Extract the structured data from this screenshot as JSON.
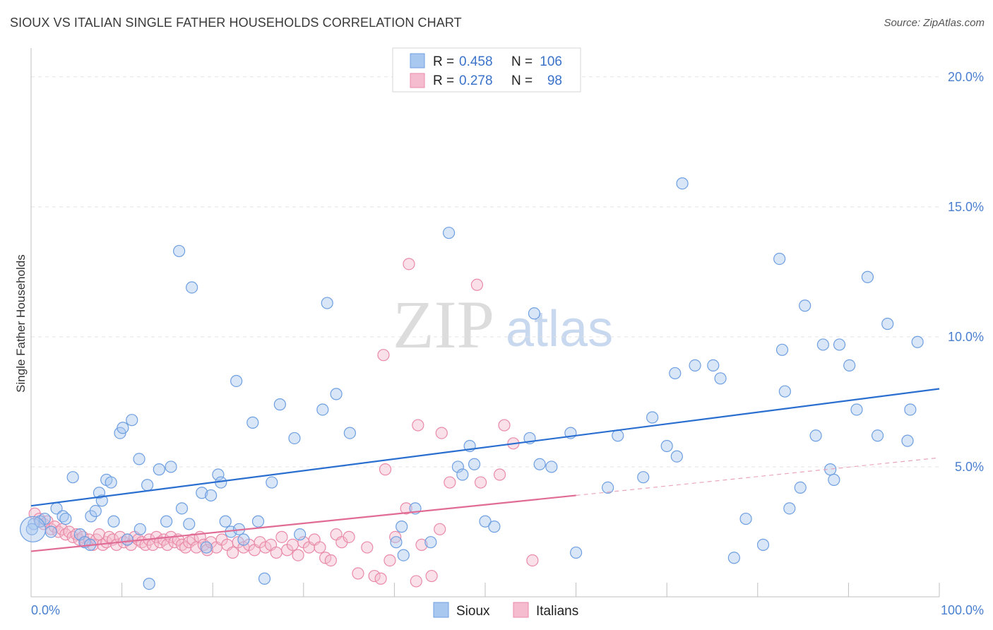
{
  "header": {
    "title": "SIOUX VS ITALIAN SINGLE FATHER HOUSEHOLDS CORRELATION CHART",
    "source": "Source: ZipAtlas.com"
  },
  "watermark": {
    "zip": "ZIP",
    "atlas": "atlas"
  },
  "legend_top": {
    "rows": [
      {
        "r_label": "R =",
        "r_value": "0.458",
        "n_label": "N =",
        "n_value": "106",
        "color": "#a9c8f0",
        "stroke": "#6e9fe0"
      },
      {
        "r_label": "R =",
        "r_value": "0.278",
        "n_label": "N =",
        "n_value": "98",
        "color": "#f5bccf",
        "stroke": "#e98aa8"
      }
    ]
  },
  "legend_bottom": {
    "items": [
      {
        "label": "Sioux",
        "color": "#a9c8f0",
        "stroke": "#6e9fe0"
      },
      {
        "label": "Italians",
        "color": "#f5bccf",
        "stroke": "#e98aa8"
      }
    ]
  },
  "chart_data": {
    "type": "scatter",
    "title": "SIOUX VS ITALIAN SINGLE FATHER HOUSEHOLDS CORRELATION CHART",
    "ylabel": "Single Father Households",
    "xlabel": "",
    "xlim": [
      0,
      100
    ],
    "ylim": [
      0,
      21
    ],
    "x_tick_labels": [
      "0.0%",
      "100.0%"
    ],
    "y_ticks": [
      {
        "value": 5,
        "label": "5.0%"
      },
      {
        "value": 10,
        "label": "10.0%"
      },
      {
        "value": 15,
        "label": "15.0%"
      },
      {
        "value": 20,
        "label": "20.0%"
      }
    ],
    "grid": true,
    "legend_position": "top-center",
    "series": [
      {
        "name": "Sioux",
        "color": "#6e9fe0",
        "fill": "#a9c8f0",
        "trend": {
          "x0": 0,
          "y0": 3.5,
          "x1": 100,
          "y1": 8.0
        },
        "points": [
          [
            0.3,
            2.8
          ],
          [
            1.0,
            2.9
          ],
          [
            1.5,
            3.0
          ],
          [
            2.2,
            2.5
          ],
          [
            2.8,
            3.4
          ],
          [
            3.5,
            3.1
          ],
          [
            3.8,
            3.0
          ],
          [
            4.6,
            4.6
          ],
          [
            5.4,
            2.4
          ],
          [
            5.9,
            2.1
          ],
          [
            6.5,
            2.0
          ],
          [
            6.6,
            3.1
          ],
          [
            7.1,
            3.3
          ],
          [
            7.5,
            4.0
          ],
          [
            7.8,
            3.7
          ],
          [
            8.3,
            4.5
          ],
          [
            8.8,
            4.4
          ],
          [
            9.1,
            2.9
          ],
          [
            9.8,
            6.3
          ],
          [
            10.1,
            6.5
          ],
          [
            10.6,
            2.2
          ],
          [
            11.1,
            6.8
          ],
          [
            11.9,
            5.3
          ],
          [
            12.0,
            2.6
          ],
          [
            12.8,
            4.3
          ],
          [
            13.0,
            0.5
          ],
          [
            14.1,
            4.9
          ],
          [
            14.9,
            2.9
          ],
          [
            15.4,
            5.0
          ],
          [
            16.3,
            13.3
          ],
          [
            16.6,
            3.4
          ],
          [
            17.4,
            2.8
          ],
          [
            17.7,
            11.9
          ],
          [
            18.8,
            4.0
          ],
          [
            19.3,
            1.9
          ],
          [
            19.8,
            3.9
          ],
          [
            20.6,
            4.7
          ],
          [
            20.9,
            4.4
          ],
          [
            21.4,
            2.9
          ],
          [
            22.0,
            2.5
          ],
          [
            22.6,
            8.3
          ],
          [
            22.9,
            2.6
          ],
          [
            23.4,
            2.2
          ],
          [
            24.4,
            6.7
          ],
          [
            25.0,
            2.9
          ],
          [
            25.7,
            0.7
          ],
          [
            26.5,
            4.4
          ],
          [
            27.4,
            7.4
          ],
          [
            29.0,
            6.1
          ],
          [
            29.6,
            2.4
          ],
          [
            32.1,
            7.2
          ],
          [
            32.6,
            11.3
          ],
          [
            33.6,
            7.8
          ],
          [
            35.1,
            6.3
          ],
          [
            40.2,
            2.1
          ],
          [
            40.8,
            2.7
          ],
          [
            41.0,
            1.6
          ],
          [
            42.3,
            3.4
          ],
          [
            44.0,
            2.1
          ],
          [
            46.0,
            14.0
          ],
          [
            47.0,
            5.0
          ],
          [
            47.5,
            4.7
          ],
          [
            48.3,
            5.8
          ],
          [
            48.8,
            5.1
          ],
          [
            50.0,
            2.9
          ],
          [
            51.0,
            2.7
          ],
          [
            54.9,
            6.1
          ],
          [
            55.4,
            10.9
          ],
          [
            56.0,
            5.1
          ],
          [
            57.3,
            5.0
          ],
          [
            59.4,
            6.3
          ],
          [
            60.0,
            1.7
          ],
          [
            63.5,
            4.2
          ],
          [
            64.6,
            6.2
          ],
          [
            67.4,
            4.6
          ],
          [
            68.4,
            6.9
          ],
          [
            70.0,
            5.8
          ],
          [
            70.9,
            8.6
          ],
          [
            71.1,
            5.4
          ],
          [
            71.7,
            15.9
          ],
          [
            73.1,
            8.9
          ],
          [
            75.1,
            8.9
          ],
          [
            75.9,
            8.4
          ],
          [
            77.4,
            1.5
          ],
          [
            78.7,
            3.0
          ],
          [
            80.6,
            2.0
          ],
          [
            82.4,
            13.0
          ],
          [
            82.7,
            9.5
          ],
          [
            83.0,
            7.9
          ],
          [
            83.5,
            3.4
          ],
          [
            84.7,
            4.2
          ],
          [
            85.2,
            11.2
          ],
          [
            86.4,
            6.2
          ],
          [
            87.2,
            9.7
          ],
          [
            88.0,
            4.9
          ],
          [
            88.4,
            4.5
          ],
          [
            89.0,
            9.7
          ],
          [
            90.1,
            8.9
          ],
          [
            90.9,
            7.2
          ],
          [
            92.1,
            12.3
          ],
          [
            93.2,
            6.2
          ],
          [
            94.3,
            10.5
          ],
          [
            96.5,
            6.0
          ],
          [
            96.8,
            7.2
          ],
          [
            97.6,
            9.8
          ],
          [
            0.1,
            2.6
          ]
        ]
      },
      {
        "name": "Italians",
        "color": "#e98aa8",
        "fill": "#f5bccf",
        "trend": {
          "x0": 0,
          "y0": 1.75,
          "x1": 60,
          "y1": 3.9
        },
        "trend_dashed": {
          "x0": 60,
          "y0": 3.9,
          "x1": 100,
          "y1": 5.35
        },
        "points": [
          [
            0.4,
            3.2
          ],
          [
            0.9,
            3.0
          ],
          [
            1.4,
            2.8
          ],
          [
            1.8,
            2.9
          ],
          [
            2.2,
            2.6
          ],
          [
            2.6,
            2.7
          ],
          [
            3.0,
            2.5
          ],
          [
            3.4,
            2.6
          ],
          [
            3.8,
            2.4
          ],
          [
            4.2,
            2.5
          ],
          [
            4.6,
            2.3
          ],
          [
            5.0,
            2.4
          ],
          [
            5.3,
            2.2
          ],
          [
            5.7,
            2.3
          ],
          [
            6.0,
            2.1
          ],
          [
            6.4,
            2.2
          ],
          [
            6.8,
            2.0
          ],
          [
            7.2,
            2.2
          ],
          [
            7.5,
            2.4
          ],
          [
            7.9,
            2.0
          ],
          [
            8.3,
            2.1
          ],
          [
            8.6,
            2.3
          ],
          [
            9.0,
            2.2
          ],
          [
            9.4,
            2.0
          ],
          [
            9.8,
            2.3
          ],
          [
            10.2,
            2.1
          ],
          [
            10.6,
            2.2
          ],
          [
            11.0,
            2.0
          ],
          [
            11.4,
            2.3
          ],
          [
            11.8,
            2.2
          ],
          [
            12.2,
            2.1
          ],
          [
            12.6,
            2.0
          ],
          [
            13.0,
            2.2
          ],
          [
            13.4,
            2.0
          ],
          [
            13.8,
            2.3
          ],
          [
            14.2,
            2.1
          ],
          [
            14.6,
            2.2
          ],
          [
            15.0,
            2.0
          ],
          [
            15.4,
            2.3
          ],
          [
            15.8,
            2.1
          ],
          [
            16.2,
            2.2
          ],
          [
            16.6,
            2.0
          ],
          [
            17.0,
            1.9
          ],
          [
            17.4,
            2.1
          ],
          [
            17.8,
            2.2
          ],
          [
            18.2,
            1.9
          ],
          [
            18.6,
            2.3
          ],
          [
            19.0,
            2.0
          ],
          [
            19.4,
            1.8
          ],
          [
            19.8,
            2.1
          ],
          [
            20.4,
            1.9
          ],
          [
            21.0,
            2.2
          ],
          [
            21.6,
            2.0
          ],
          [
            22.2,
            1.7
          ],
          [
            22.8,
            2.1
          ],
          [
            23.4,
            1.9
          ],
          [
            24.0,
            2.0
          ],
          [
            24.6,
            1.8
          ],
          [
            25.2,
            2.1
          ],
          [
            25.8,
            1.9
          ],
          [
            26.4,
            2.0
          ],
          [
            27.0,
            1.7
          ],
          [
            27.6,
            2.3
          ],
          [
            28.2,
            1.8
          ],
          [
            28.8,
            2.0
          ],
          [
            29.4,
            1.6
          ],
          [
            30.0,
            2.1
          ],
          [
            30.6,
            1.9
          ],
          [
            31.2,
            2.2
          ],
          [
            31.8,
            1.9
          ],
          [
            32.4,
            1.5
          ],
          [
            33.0,
            1.4
          ],
          [
            33.6,
            2.4
          ],
          [
            34.2,
            2.1
          ],
          [
            35.0,
            2.3
          ],
          [
            36.0,
            0.9
          ],
          [
            37.0,
            1.9
          ],
          [
            37.8,
            0.8
          ],
          [
            38.5,
            0.7
          ],
          [
            38.8,
            9.3
          ],
          [
            39.0,
            4.9
          ],
          [
            39.5,
            1.4
          ],
          [
            40.1,
            2.3
          ],
          [
            41.3,
            3.4
          ],
          [
            41.6,
            12.8
          ],
          [
            42.4,
            0.6
          ],
          [
            42.6,
            6.6
          ],
          [
            43.0,
            2.0
          ],
          [
            44.1,
            0.8
          ],
          [
            45.0,
            2.6
          ],
          [
            45.2,
            6.3
          ],
          [
            46.1,
            4.4
          ],
          [
            49.1,
            12.0
          ],
          [
            49.5,
            4.4
          ],
          [
            51.6,
            4.7
          ],
          [
            52.1,
            6.6
          ],
          [
            53.1,
            5.9
          ],
          [
            55.2,
            1.4
          ]
        ]
      }
    ]
  }
}
